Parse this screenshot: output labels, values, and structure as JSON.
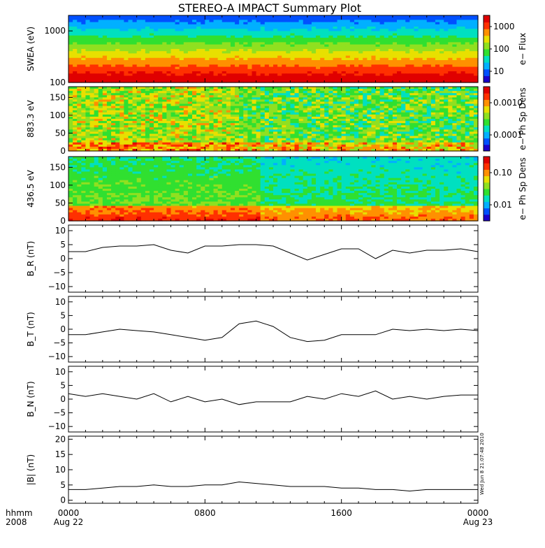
{
  "title": "STEREO-A IMPACT Summary Plot",
  "footer": {
    "time_label": "hhmm",
    "year_label": "2008"
  },
  "timestamp": "Wed Jun  8 21:07:48 2010",
  "time_ticks": [
    {
      "value": 0,
      "line1": "0000",
      "line2": "Aug 22"
    },
    {
      "value": 8,
      "line1": "0800",
      "line2": ""
    },
    {
      "value": 16,
      "line1": "1600",
      "line2": ""
    },
    {
      "value": 24,
      "line1": "0000",
      "line2": "Aug 23"
    }
  ],
  "colors": {
    "spectrogram_scale": [
      "#1a00cc",
      "#0050ff",
      "#00b0ff",
      "#00e0c0",
      "#30e030",
      "#90e020",
      "#e8e000",
      "#ff9000",
      "#ff3000",
      "#e00000"
    ],
    "line": "#000000"
  },
  "chart_data": [
    {
      "type": "heatmap",
      "ylabel": "SWEA (eV)",
      "yscale": "log",
      "ylim": [
        100,
        2000
      ],
      "yticks": [
        "1000",
        "100"
      ],
      "xlim": [
        0,
        24
      ],
      "colorbar": {
        "label": "e− Flux",
        "scale": "log",
        "ticks": [
          "1000",
          "100",
          "10"
        ]
      }
    },
    {
      "type": "heatmap",
      "ylabel": "883.3 eV",
      "ylim": [
        0,
        180
      ],
      "yticks": [
        "150",
        "100",
        "50",
        "0"
      ],
      "xlim": [
        0,
        24
      ],
      "colorbar": {
        "label": "e− Ph Sp Dens",
        "scale": "log",
        "ticks": [
          "0.0010",
          "0.0001"
        ]
      }
    },
    {
      "type": "heatmap",
      "ylabel": "436.5 eV",
      "ylim": [
        0,
        180
      ],
      "yticks": [
        "150",
        "100",
        "50",
        "0"
      ],
      "xlim": [
        0,
        24
      ],
      "colorbar": {
        "label": "e− Ph Sp Dens",
        "scale": "log",
        "ticks": [
          "0.10",
          "0.01"
        ]
      }
    },
    {
      "type": "line",
      "ylabel": "B_R (nT)",
      "ylim": [
        -12,
        12
      ],
      "yticks": [
        "10",
        "5",
        "0",
        "−5",
        "−10"
      ],
      "xlim": [
        0,
        24
      ],
      "x": [
        0,
        1,
        2,
        3,
        4,
        5,
        6,
        7,
        8,
        9,
        10,
        11,
        12,
        13,
        14,
        15,
        16,
        17,
        18,
        19,
        20,
        21,
        22,
        23,
        24
      ],
      "values": [
        2.5,
        2.5,
        4,
        4.5,
        4.5,
        5,
        3,
        2,
        4.5,
        4.5,
        5,
        5,
        4.5,
        2,
        -0.5,
        1.5,
        3.5,
        3.5,
        0,
        3,
        2,
        3,
        3,
        3.5,
        2.5
      ]
    },
    {
      "type": "line",
      "ylabel": "B_T (nT)",
      "ylim": [
        -12,
        12
      ],
      "yticks": [
        "10",
        "5",
        "0",
        "−5",
        "−10"
      ],
      "xlim": [
        0,
        24
      ],
      "x": [
        0,
        1,
        2,
        3,
        4,
        5,
        6,
        7,
        8,
        9,
        10,
        11,
        12,
        13,
        14,
        15,
        16,
        17,
        18,
        19,
        20,
        21,
        22,
        23,
        24
      ],
      "values": [
        -2,
        -2,
        -1,
        0,
        -0.5,
        -1,
        -2,
        -3,
        -4,
        -3,
        2,
        3,
        1,
        -3,
        -4.5,
        -4,
        -2,
        -2,
        -2,
        0,
        -0.5,
        0,
        -0.5,
        0,
        -0.5
      ]
    },
    {
      "type": "line",
      "ylabel": "B_N (nT)",
      "ylim": [
        -12,
        12
      ],
      "yticks": [
        "10",
        "5",
        "0",
        "−5",
        "−10"
      ],
      "xlim": [
        0,
        24
      ],
      "x": [
        0,
        1,
        2,
        3,
        4,
        5,
        6,
        7,
        8,
        9,
        10,
        11,
        12,
        13,
        14,
        15,
        16,
        17,
        18,
        19,
        20,
        21,
        22,
        23,
        24
      ],
      "values": [
        2,
        1,
        2,
        1,
        0,
        2,
        -1,
        1,
        -1,
        0,
        -2,
        -1,
        -1,
        -1,
        1,
        0,
        2,
        1,
        3,
        0,
        1,
        0,
        1,
        1.5,
        1.5
      ]
    },
    {
      "type": "line",
      "ylabel": "|B| (nT)",
      "ylim": [
        -1,
        21
      ],
      "yticks": [
        "20",
        "15",
        "10",
        "5",
        "0"
      ],
      "xlim": [
        0,
        24
      ],
      "x": [
        0,
        1,
        2,
        3,
        4,
        5,
        6,
        7,
        8,
        9,
        10,
        11,
        12,
        13,
        14,
        15,
        16,
        17,
        18,
        19,
        20,
        21,
        22,
        23,
        24
      ],
      "values": [
        3.5,
        3.5,
        4,
        4.5,
        4.5,
        5,
        4.5,
        4.5,
        5,
        5,
        6,
        5.5,
        5,
        4.5,
        4.5,
        4.5,
        4,
        4,
        3.5,
        3.5,
        3,
        3.5,
        3.5,
        3.5,
        3.5
      ]
    }
  ]
}
